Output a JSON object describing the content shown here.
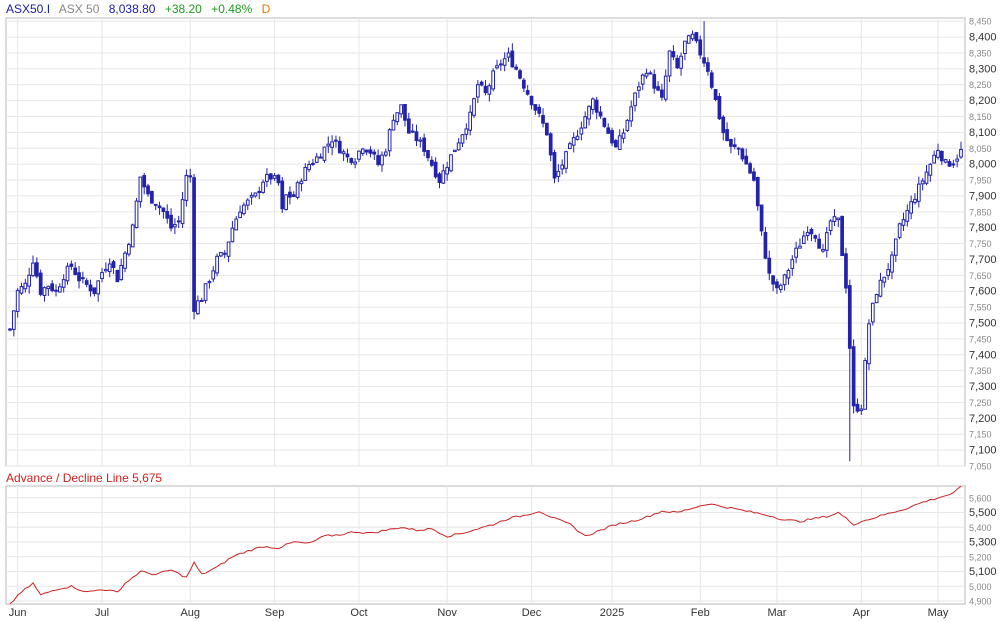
{
  "header": {
    "symbol": "ASX50.I",
    "name": "ASX 50",
    "last": "8,038.80",
    "change": "+38.20",
    "change_pct": "+0.48%",
    "interval": "D"
  },
  "indicator": {
    "title": "Advance / Decline Line 5,675"
  },
  "colors": {
    "symbol": "#1a1aa6",
    "name": "#888888",
    "last": "#1a1aa6",
    "up": "#1f9d1f",
    "interval": "#e07b00",
    "candle": "#2222aa",
    "line": "#cc2222",
    "indicator_title": "#cc2222",
    "grid": "#e6e6e6",
    "border": "#b8b8b8"
  },
  "chart_data": [
    {
      "type": "candlestick",
      "series_name": "ASX 50",
      "y_range": [
        7050,
        8460
      ],
      "y_ticks": [
        {
          "value": 8450,
          "label": "8,450",
          "major": false
        },
        {
          "value": 8400,
          "label": "8,400",
          "major": true
        },
        {
          "value": 8350,
          "label": "8,350",
          "major": false
        },
        {
          "value": 8300,
          "label": "8,300",
          "major": true
        },
        {
          "value": 8250,
          "label": "8,250",
          "major": false
        },
        {
          "value": 8200,
          "label": "8,200",
          "major": true
        },
        {
          "value": 8150,
          "label": "8,150",
          "major": false
        },
        {
          "value": 8100,
          "label": "8,100",
          "major": true
        },
        {
          "value": 8050,
          "label": "8,050",
          "major": false
        },
        {
          "value": 8000,
          "label": "8,000",
          "major": true
        },
        {
          "value": 7950,
          "label": "7,950",
          "major": false
        },
        {
          "value": 7900,
          "label": "7,900",
          "major": true
        },
        {
          "value": 7850,
          "label": "7,850",
          "major": false
        },
        {
          "value": 7800,
          "label": "7,800",
          "major": true
        },
        {
          "value": 7750,
          "label": "7,750",
          "major": false
        },
        {
          "value": 7700,
          "label": "7,700",
          "major": true
        },
        {
          "value": 7650,
          "label": "7,650",
          "major": false
        },
        {
          "value": 7600,
          "label": "7,600",
          "major": true
        },
        {
          "value": 7550,
          "label": "7,550",
          "major": false
        },
        {
          "value": 7500,
          "label": "7,500",
          "major": true
        },
        {
          "value": 7450,
          "label": "7,450",
          "major": false
        },
        {
          "value": 7400,
          "label": "7,400",
          "major": true
        },
        {
          "value": 7350,
          "label": "7,350",
          "major": false
        },
        {
          "value": 7300,
          "label": "7,300",
          "major": true
        },
        {
          "value": 7250,
          "label": "7,250",
          "major": false
        },
        {
          "value": 7200,
          "label": "7,200",
          "major": true
        },
        {
          "value": 7150,
          "label": "7,150",
          "major": false
        },
        {
          "value": 7100,
          "label": "7,100",
          "major": true
        },
        {
          "value": 7050,
          "label": "7,050",
          "major": false
        }
      ],
      "close_path": [
        [
          0,
          7480
        ],
        [
          2,
          7600
        ],
        [
          4,
          7620
        ],
        [
          6,
          7700
        ],
        [
          8,
          7600
        ],
        [
          10,
          7620
        ],
        [
          12,
          7600
        ],
        [
          14,
          7650
        ],
        [
          16,
          7680
        ],
        [
          18,
          7640
        ],
        [
          20,
          7620
        ],
        [
          22,
          7600
        ],
        [
          24,
          7660
        ],
        [
          26,
          7700
        ],
        [
          28,
          7640
        ],
        [
          30,
          7720
        ],
        [
          32,
          7800
        ],
        [
          34,
          7960
        ],
        [
          36,
          7900
        ],
        [
          38,
          7880
        ],
        [
          40,
          7850
        ],
        [
          42,
          7800
        ],
        [
          44,
          7820
        ],
        [
          46,
          7960
        ],
        [
          47,
          7960
        ],
        [
          48,
          7550
        ],
        [
          50,
          7580
        ],
        [
          52,
          7640
        ],
        [
          54,
          7700
        ],
        [
          56,
          7720
        ],
        [
          58,
          7800
        ],
        [
          60,
          7860
        ],
        [
          62,
          7880
        ],
        [
          64,
          7900
        ],
        [
          66,
          7950
        ],
        [
          68,
          7960
        ],
        [
          70,
          7940
        ],
        [
          71,
          7850
        ],
        [
          72,
          7900
        ],
        [
          74,
          7900
        ],
        [
          76,
          7960
        ],
        [
          78,
          8000
        ],
        [
          80,
          8020
        ],
        [
          82,
          8050
        ],
        [
          84,
          8080
        ],
        [
          86,
          8050
        ],
        [
          88,
          8020
        ],
        [
          90,
          8020
        ],
        [
          92,
          8060
        ],
        [
          94,
          8040
        ],
        [
          96,
          8000
        ],
        [
          98,
          8050
        ],
        [
          100,
          8150
        ],
        [
          102,
          8180
        ],
        [
          104,
          8100
        ],
        [
          106,
          8080
        ],
        [
          108,
          8050
        ],
        [
          110,
          8000
        ],
        [
          112,
          7950
        ],
        [
          114,
          8000
        ],
        [
          116,
          8050
        ],
        [
          118,
          8100
        ],
        [
          120,
          8150
        ],
        [
          122,
          8250
        ],
        [
          124,
          8220
        ],
        [
          126,
          8280
        ],
        [
          128,
          8320
        ],
        [
          130,
          8340
        ],
        [
          132,
          8300
        ],
        [
          134,
          8250
        ],
        [
          136,
          8200
        ],
        [
          138,
          8150
        ],
        [
          140,
          8100
        ],
        [
          142,
          7950
        ],
        [
          144,
          8000
        ],
        [
          146,
          8050
        ],
        [
          148,
          8100
        ],
        [
          150,
          8150
        ],
        [
          152,
          8200
        ],
        [
          154,
          8150
        ],
        [
          156,
          8100
        ],
        [
          158,
          8050
        ],
        [
          160,
          8100
        ],
        [
          162,
          8180
        ],
        [
          164,
          8250
        ],
        [
          166,
          8300
        ],
        [
          168,
          8250
        ],
        [
          170,
          8200
        ],
        [
          172,
          8350
        ],
        [
          174,
          8300
        ],
        [
          176,
          8380
        ],
        [
          178,
          8400
        ],
        [
          180,
          8350
        ],
        [
          182,
          8300
        ],
        [
          184,
          8200
        ],
        [
          186,
          8100
        ],
        [
          188,
          8050
        ],
        [
          190,
          8050
        ],
        [
          192,
          8000
        ],
        [
          194,
          7950
        ],
        [
          196,
          7780
        ],
        [
          198,
          7650
        ],
        [
          200,
          7600
        ],
        [
          202,
          7640
        ],
        [
          204,
          7700
        ],
        [
          206,
          7750
        ],
        [
          208,
          7800
        ],
        [
          210,
          7780
        ],
        [
          212,
          7720
        ],
        [
          214,
          7820
        ],
        [
          216,
          7820
        ],
        [
          218,
          7620
        ],
        [
          220,
          7230
        ],
        [
          222,
          7240
        ],
        [
          224,
          7500
        ],
        [
          226,
          7600
        ],
        [
          228,
          7650
        ],
        [
          230,
          7700
        ],
        [
          232,
          7800
        ],
        [
          234,
          7850
        ],
        [
          236,
          7900
        ],
        [
          238,
          7950
        ],
        [
          240,
          8000
        ],
        [
          242,
          8050
        ],
        [
          244,
          8000
        ],
        [
          246,
          8010
        ],
        [
          248,
          8040
        ]
      ],
      "close_path_note": "approximate daily close index 0-248 (Jun 2024 to May 2025)",
      "low_spike": {
        "day": 219,
        "value": 7065
      },
      "high_spike": {
        "day": 181,
        "value": 8450
      }
    },
    {
      "type": "line",
      "series_name": "Advance / Decline Line",
      "y_range": [
        4880,
        5680
      ],
      "y_ticks": [
        {
          "value": 5600,
          "label": "5,600",
          "major": false
        },
        {
          "value": 5500,
          "label": "5,500",
          "major": true
        },
        {
          "value": 5400,
          "label": "5,400",
          "major": false
        },
        {
          "value": 5300,
          "label": "5,300",
          "major": true
        },
        {
          "value": 5200,
          "label": "5,200",
          "major": false
        },
        {
          "value": 5100,
          "label": "5,100",
          "major": true
        },
        {
          "value": 5000,
          "label": "5,000",
          "major": false
        },
        {
          "value": 4900,
          "label": "4,900",
          "major": false
        }
      ],
      "path": [
        [
          0,
          4880
        ],
        [
          3,
          4960
        ],
        [
          6,
          5020
        ],
        [
          8,
          4940
        ],
        [
          12,
          4980
        ],
        [
          16,
          5000
        ],
        [
          20,
          4960
        ],
        [
          24,
          4980
        ],
        [
          28,
          4960
        ],
        [
          30,
          5020
        ],
        [
          34,
          5100
        ],
        [
          38,
          5080
        ],
        [
          42,
          5110
        ],
        [
          46,
          5060
        ],
        [
          48,
          5160
        ],
        [
          50,
          5080
        ],
        [
          54,
          5130
        ],
        [
          58,
          5200
        ],
        [
          62,
          5240
        ],
        [
          66,
          5270
        ],
        [
          70,
          5260
        ],
        [
          74,
          5300
        ],
        [
          78,
          5290
        ],
        [
          82,
          5340
        ],
        [
          86,
          5350
        ],
        [
          90,
          5370
        ],
        [
          94,
          5360
        ],
        [
          98,
          5380
        ],
        [
          102,
          5400
        ],
        [
          106,
          5380
        ],
        [
          110,
          5390
        ],
        [
          114,
          5340
        ],
        [
          118,
          5360
        ],
        [
          122,
          5390
        ],
        [
          126,
          5420
        ],
        [
          130,
          5460
        ],
        [
          134,
          5480
        ],
        [
          138,
          5510
        ],
        [
          142,
          5460
        ],
        [
          146,
          5420
        ],
        [
          150,
          5340
        ],
        [
          154,
          5380
        ],
        [
          158,
          5420
        ],
        [
          162,
          5440
        ],
        [
          166,
          5470
        ],
        [
          170,
          5510
        ],
        [
          174,
          5500
        ],
        [
          178,
          5530
        ],
        [
          182,
          5560
        ],
        [
          186,
          5540
        ],
        [
          190,
          5520
        ],
        [
          194,
          5500
        ],
        [
          198,
          5480
        ],
        [
          202,
          5450
        ],
        [
          206,
          5440
        ],
        [
          210,
          5460
        ],
        [
          214,
          5480
        ],
        [
          216,
          5500
        ],
        [
          218,
          5460
        ],
        [
          220,
          5420
        ],
        [
          222,
          5440
        ],
        [
          226,
          5470
        ],
        [
          230,
          5500
        ],
        [
          234,
          5530
        ],
        [
          238,
          5570
        ],
        [
          242,
          5600
        ],
        [
          246,
          5630
        ],
        [
          248,
          5675
        ]
      ]
    }
  ],
  "x_axis": {
    "days_total": 248,
    "labels": [
      {
        "day": 2,
        "label": "Jun"
      },
      {
        "day": 24,
        "label": "Jul"
      },
      {
        "day": 47,
        "label": "Aug"
      },
      {
        "day": 69,
        "label": "Sep"
      },
      {
        "day": 91,
        "label": "Oct"
      },
      {
        "day": 114,
        "label": "Nov"
      },
      {
        "day": 136,
        "label": "Dec"
      },
      {
        "day": 157,
        "label": "2025"
      },
      {
        "day": 180,
        "label": "Feb"
      },
      {
        "day": 200,
        "label": "Mar"
      },
      {
        "day": 222,
        "label": "Apr"
      },
      {
        "day": 242,
        "label": "May"
      }
    ]
  }
}
